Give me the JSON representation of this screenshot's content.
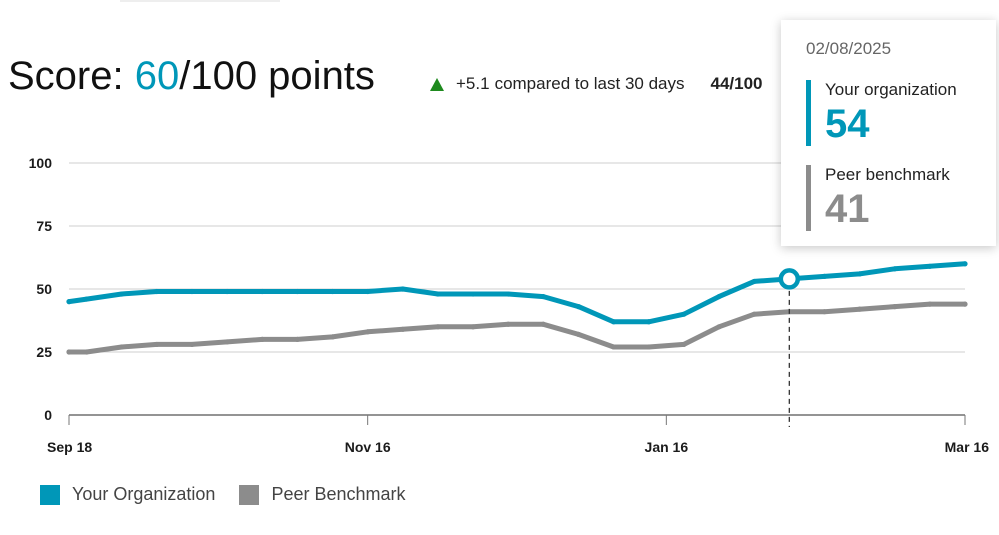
{
  "header": {
    "score_prefix": "Score: ",
    "score_value": "60",
    "score_suffix": "/100 points",
    "delta_value": "+5.1",
    "delta_text": "compared to last 30 days",
    "secondary_score": "44/100"
  },
  "colors": {
    "organization": "#0097b8",
    "benchmark": "#8c8c8c",
    "up": "#1e8a1e"
  },
  "legend": {
    "organization": "Your Organization",
    "benchmark": "Peer Benchmark"
  },
  "tooltip": {
    "date": "02/08/2025",
    "org_label": "Your organization",
    "org_value": "54",
    "bench_label": "Peer benchmark",
    "bench_value": "41"
  },
  "chart_data": {
    "type": "line",
    "title": "",
    "xlabel": "",
    "ylabel": "",
    "ylim": [
      0,
      100
    ],
    "yticks": [
      0,
      25,
      50,
      75,
      100
    ],
    "x_ticks": [
      "Sep 18",
      "Nov 16",
      "Jan 16",
      "Mar 16"
    ],
    "x_tick_index": [
      0,
      17,
      34,
      51
    ],
    "n_points": 52,
    "grid": true,
    "legend_position": "bottom-left",
    "highlight_index": 41,
    "series": [
      {
        "name": "Your Organization",
        "points": [
          [
            0,
            45
          ],
          [
            1,
            46
          ],
          [
            3,
            48
          ],
          [
            5,
            49
          ],
          [
            7,
            49
          ],
          [
            9,
            49
          ],
          [
            11,
            49
          ],
          [
            13,
            49
          ],
          [
            15,
            49
          ],
          [
            17,
            49
          ],
          [
            19,
            50
          ],
          [
            21,
            48
          ],
          [
            23,
            48
          ],
          [
            25,
            48
          ],
          [
            27,
            47
          ],
          [
            29,
            43
          ],
          [
            31,
            37
          ],
          [
            33,
            37
          ],
          [
            35,
            40
          ],
          [
            37,
            47
          ],
          [
            39,
            53
          ],
          [
            41,
            54
          ],
          [
            43,
            55
          ],
          [
            45,
            56
          ],
          [
            47,
            58
          ],
          [
            49,
            59
          ],
          [
            51,
            60
          ]
        ]
      },
      {
        "name": "Peer Benchmark",
        "points": [
          [
            0,
            25
          ],
          [
            1,
            25
          ],
          [
            3,
            27
          ],
          [
            5,
            28
          ],
          [
            7,
            28
          ],
          [
            9,
            29
          ],
          [
            11,
            30
          ],
          [
            13,
            30
          ],
          [
            15,
            31
          ],
          [
            17,
            33
          ],
          [
            19,
            34
          ],
          [
            21,
            35
          ],
          [
            23,
            35
          ],
          [
            25,
            36
          ],
          [
            27,
            36
          ],
          [
            29,
            32
          ],
          [
            31,
            27
          ],
          [
            33,
            27
          ],
          [
            35,
            28
          ],
          [
            37,
            35
          ],
          [
            39,
            40
          ],
          [
            41,
            41
          ],
          [
            43,
            41
          ],
          [
            45,
            42
          ],
          [
            47,
            43
          ],
          [
            49,
            44
          ],
          [
            51,
            44
          ]
        ]
      }
    ]
  }
}
